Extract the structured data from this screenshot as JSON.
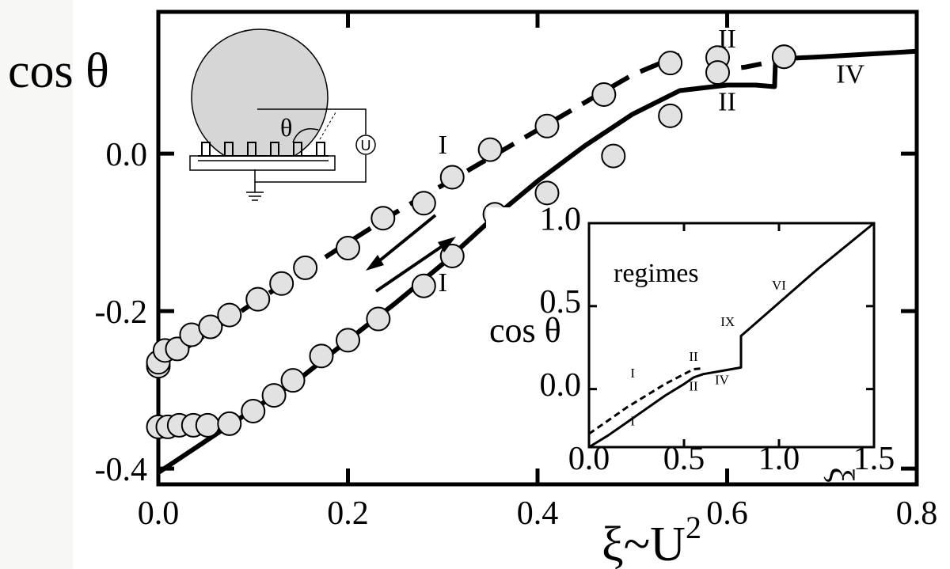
{
  "chart_data": [
    {
      "type": "line",
      "xlim": [
        0.0,
        0.8
      ],
      "ylim": [
        -0.42,
        0.18
      ],
      "x_ticks": [
        "0.0",
        "0.2",
        "0.4",
        "0.6",
        "0.8"
      ],
      "y_ticks": [
        "0.0",
        "-0.2",
        "-0.4"
      ],
      "ylabel": "cos θ",
      "xlabel": "ξ~U",
      "xlabel_sup": "2",
      "series": [
        {
          "style": "solid",
          "x": [
            0.0,
            0.05,
            0.1,
            0.15,
            0.2,
            0.25,
            0.3,
            0.35,
            0.4,
            0.45,
            0.5,
            0.55,
            0.6,
            0.63,
            0.65,
            0.651,
            0.7,
            0.8
          ],
          "y": [
            -0.405,
            -0.365,
            -0.325,
            -0.285,
            -0.237,
            -0.19,
            -0.14,
            -0.085,
            -0.035,
            0.01,
            0.05,
            0.08,
            0.087,
            0.087,
            0.085,
            0.12,
            0.123,
            0.13
          ]
        },
        {
          "style": "dashed",
          "x": [
            0.0,
            0.05,
            0.1,
            0.15,
            0.2,
            0.25,
            0.3,
            0.35,
            0.4,
            0.45,
            0.5,
            0.55
          ],
          "y": [
            -0.27,
            -0.23,
            -0.19,
            -0.152,
            -0.113,
            -0.075,
            -0.04,
            -0.005,
            0.03,
            0.065,
            0.1,
            0.125
          ]
        },
        {
          "style": "dashed",
          "x": [
            0.58,
            0.6,
            0.62,
            0.64
          ],
          "y": [
            0.105,
            0.107,
            0.11,
            0.115
          ]
        },
        {
          "style": "markers",
          "x": [
            0.0,
            0.0,
            0.007,
            0.02,
            0.035,
            0.055,
            0.075,
            0.105,
            0.13,
            0.155,
            0.2,
            0.237,
            0.28,
            0.31,
            0.35,
            0.41,
            0.47,
            0.54,
            0.59,
            0.66
          ],
          "y": [
            -0.27,
            -0.265,
            -0.25,
            -0.248,
            -0.23,
            -0.22,
            -0.205,
            -0.185,
            -0.165,
            -0.145,
            -0.12,
            -0.082,
            -0.063,
            -0.03,
            0.005,
            0.035,
            0.075,
            0.115,
            0.122,
            0.123
          ]
        },
        {
          "style": "markers",
          "x": [
            0.0,
            0.01,
            0.022,
            0.037,
            0.052,
            0.075,
            0.1,
            0.122,
            0.142,
            0.172,
            0.2,
            0.232,
            0.28,
            0.31,
            0.355,
            0.41,
            0.48,
            0.54,
            0.59,
            0.66
          ],
          "y": [
            -0.347,
            -0.347,
            -0.345,
            -0.345,
            -0.345,
            -0.343,
            -0.327,
            -0.307,
            -0.288,
            -0.257,
            -0.237,
            -0.21,
            -0.168,
            -0.13,
            -0.077,
            -0.05,
            -0.003,
            0.048,
            0.103,
            0.123
          ]
        }
      ],
      "annotations": [
        {
          "text": "I",
          "x": 0.3,
          "y": 0.0
        },
        {
          "text": "I",
          "x": 0.3,
          "y": -0.175
        },
        {
          "text": "II",
          "x": 0.6,
          "y": 0.135
        },
        {
          "text": "II",
          "x": 0.6,
          "y": 0.055
        },
        {
          "text": "IV",
          "x": 0.73,
          "y": 0.09
        }
      ]
    },
    {
      "type": "line",
      "xlim": [
        0.0,
        1.5
      ],
      "ylim": [
        -0.35,
        1.0
      ],
      "x_ticks": [
        "0.0",
        "0.5",
        "1.0",
        "1.5"
      ],
      "y_ticks": [
        "1.0",
        "0.5",
        "0.0"
      ],
      "ylabel": "cos θ",
      "xlabel": "ξ",
      "title": "regimes",
      "series": [
        {
          "style": "solid",
          "x": [
            0.0,
            0.1,
            0.2,
            0.3,
            0.4,
            0.5,
            0.55,
            0.6,
            0.65,
            0.7,
            0.75,
            0.8,
            0.8,
            0.85,
            0.9,
            1.0,
            1.2,
            1.5
          ],
          "y": [
            -0.35,
            -0.28,
            -0.2,
            -0.12,
            -0.04,
            0.03,
            0.07,
            0.09,
            0.1,
            0.11,
            0.12,
            0.13,
            0.32,
            0.37,
            0.42,
            0.52,
            0.72,
            1.0
          ]
        },
        {
          "style": "dashed",
          "x": [
            0.0,
            0.1,
            0.2,
            0.3,
            0.4,
            0.5,
            0.55,
            0.6
          ],
          "y": [
            -0.27,
            -0.19,
            -0.11,
            -0.04,
            0.03,
            0.09,
            0.12,
            0.125
          ]
        }
      ],
      "annotations": [
        {
          "text": "I",
          "x": 0.23,
          "y": 0.07
        },
        {
          "text": "I",
          "x": 0.23,
          "y": -0.22
        },
        {
          "text": "II",
          "x": 0.55,
          "y": 0.17
        },
        {
          "text": "II",
          "x": 0.55,
          "y": -0.01
        },
        {
          "text": "IV",
          "x": 0.7,
          "y": 0.03
        },
        {
          "text": "IX",
          "x": 0.73,
          "y": 0.38
        },
        {
          "text": "VI",
          "x": 1.0,
          "y": 0.6
        }
      ]
    }
  ],
  "schematic": {
    "angle_label": "θ",
    "source_label": "U"
  }
}
